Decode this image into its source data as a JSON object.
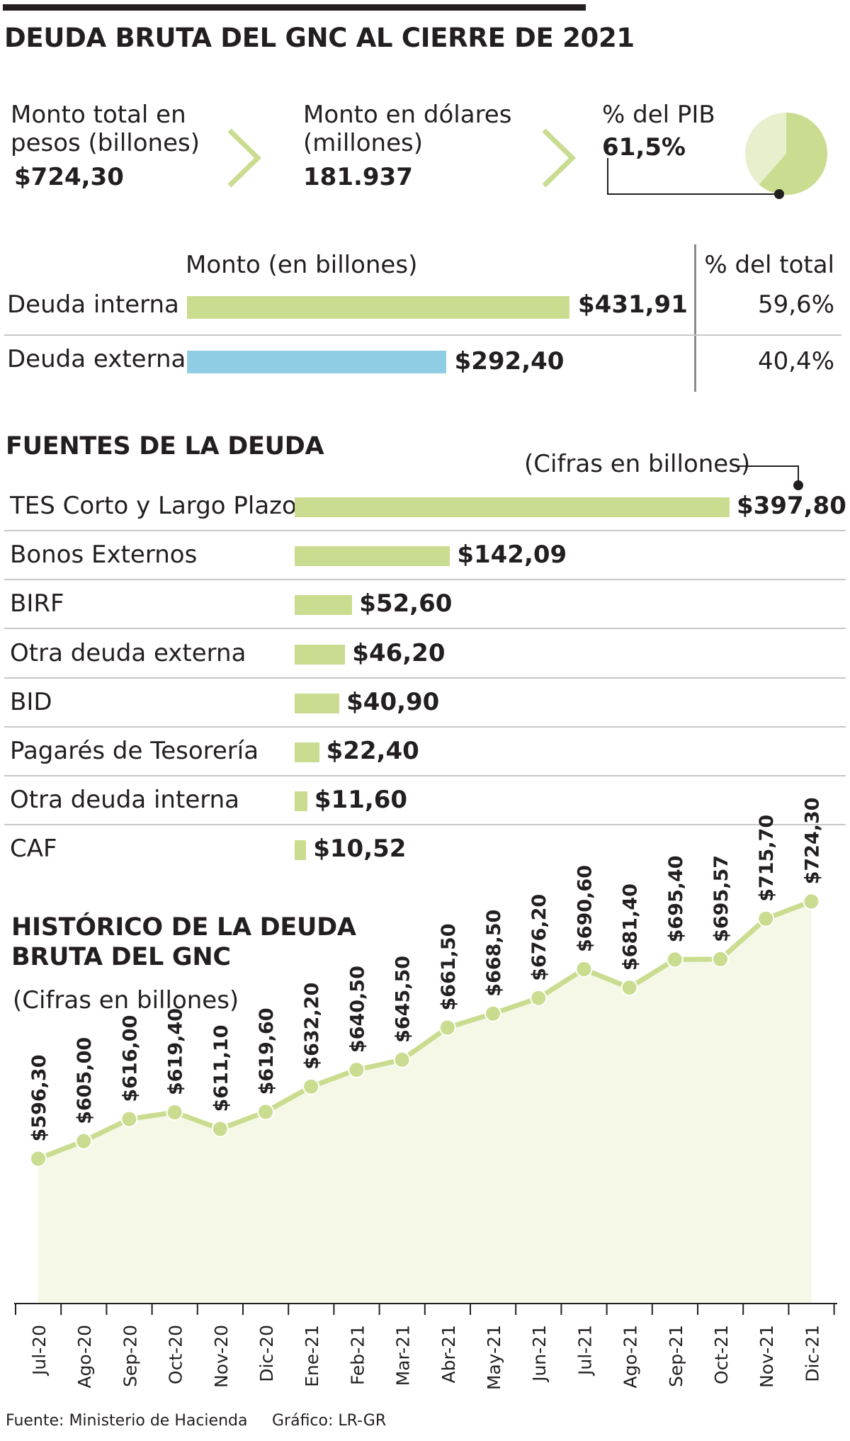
{
  "title": "DEUDA BRUTA DEL GNC AL CIERRE DE 2021",
  "colors": {
    "green": "#c9dc8f",
    "blue": "#8fcde4",
    "light_green": "#e8efcc",
    "area": "#f5f8e6",
    "dark": "#231f20"
  },
  "kpis": {
    "pesos": {
      "label_line1": "Monto total en",
      "label_line2": "pesos (billones)",
      "value": "$724,30"
    },
    "dolares": {
      "label_line1": "Monto en dólares",
      "label_line2": "(millones)",
      "value": "181.937"
    },
    "pib": {
      "label": "% del PIB",
      "value": "61,5%",
      "percent": 61.5
    }
  },
  "composition": {
    "header_amount": "Monto (en billones)",
    "header_pct": "% del total",
    "rows": [
      {
        "label": "Deuda interna",
        "value": 431.91,
        "value_label": "$431,91",
        "pct": "59,6%",
        "color": "#c9dc8f"
      },
      {
        "label": "Deuda externa",
        "value": 292.4,
        "value_label": "$292,40",
        "pct": "40,4%",
        "color": "#8fcde4"
      }
    ]
  },
  "sources": {
    "title": "FUENTES DE LA DEUDA",
    "note": "(Cifras en billones)"
  },
  "history": {
    "title_line1": "HISTÓRICO DE LA DEUDA",
    "title_line2": "BRUTA DEL GNC",
    "note": "(Cifras en billones)"
  },
  "footer": {
    "source": "Fuente: Ministerio de Hacienda",
    "credit": "Gráfico: LR-GR"
  },
  "chart_data": [
    {
      "type": "bar",
      "title": "FUENTES DE LA DEUDA",
      "subtitle": "(Cifras en billones)",
      "categories": [
        "TES Corto y Largo Plazo",
        "Bonos Externos",
        "BIRF",
        "Otra deuda externa",
        "BID",
        "Pagarés de Tesorería",
        "Otra deuda interna",
        "CAF"
      ],
      "values": [
        397.8,
        142.09,
        52.6,
        46.2,
        40.9,
        22.4,
        11.6,
        10.52
      ],
      "labels": [
        "$397,80",
        "$142,09",
        "$52,60",
        "$46,20",
        "$40,90",
        "$22,40",
        "$11,60",
        "$10,52"
      ],
      "orientation": "horizontal"
    },
    {
      "type": "area",
      "title": "HISTÓRICO DE LA DEUDA BRUTA DEL GNC",
      "subtitle": "(Cifras en billones)",
      "x": [
        "Jul-20",
        "Ago-20",
        "Sep-20",
        "Oct-20",
        "Nov-20",
        "Dic-20",
        "Ene-21",
        "Feb-21",
        "Mar-21",
        "Abr-21",
        "May-21",
        "Jun-21",
        "Jul-21",
        "Ago-21",
        "Sep-21",
        "Oct-21",
        "Nov-21",
        "Dic-21"
      ],
      "values": [
        596.3,
        605.0,
        616.0,
        619.4,
        611.1,
        619.6,
        632.2,
        640.5,
        645.5,
        661.5,
        668.5,
        676.2,
        690.6,
        681.4,
        695.4,
        695.57,
        715.7,
        724.3
      ],
      "labels": [
        "$596,30",
        "$605,00",
        "$616,00",
        "$619,40",
        "$611,10",
        "$619,60",
        "$632,20",
        "$640,50",
        "$645,50",
        "$661,50",
        "$668,50",
        "$676,20",
        "$690,60",
        "$681,40",
        "$695,40",
        "$695,57",
        "$715,70",
        "$724,30"
      ],
      "ylim": [
        520,
        735
      ]
    }
  ]
}
